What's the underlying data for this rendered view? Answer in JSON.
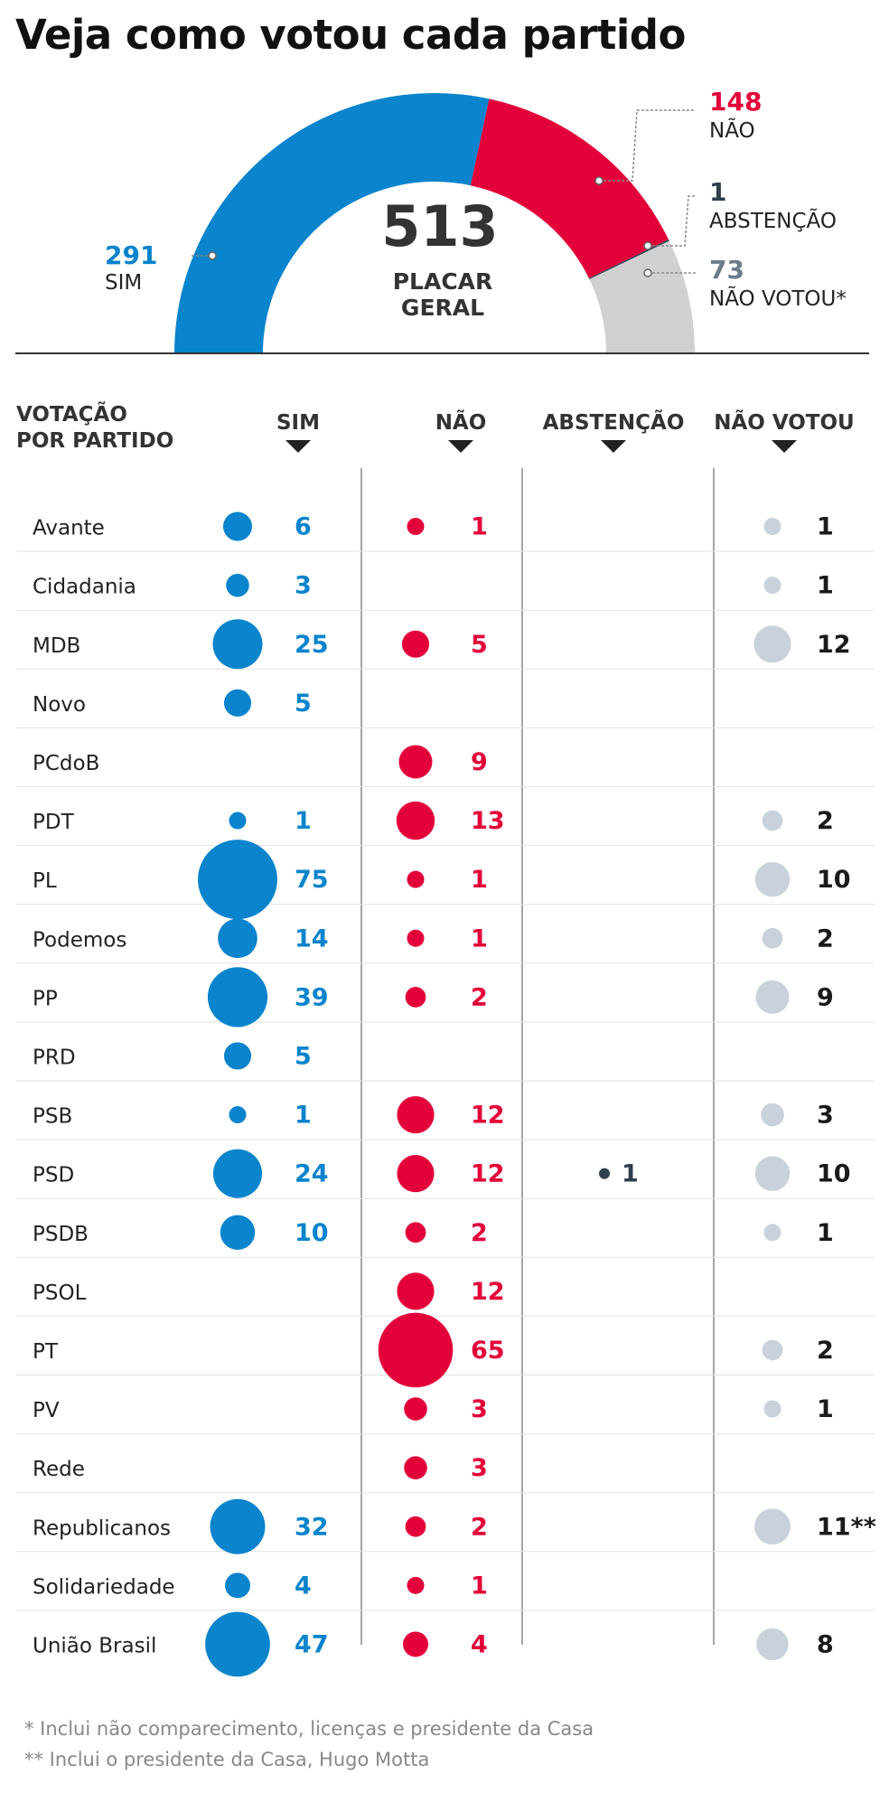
{
  "title": "Veja como votou cada partido",
  "chart_data": [
    {
      "type": "pie",
      "variant": "semicircle",
      "title": "Placar geral",
      "total": 513,
      "total_label": [
        "PLACAR",
        "GERAL"
      ],
      "slices": [
        {
          "key": "sim",
          "label": "SIM",
          "value": 291,
          "color": "#0a84cc"
        },
        {
          "key": "nao",
          "label": "NÃO",
          "value": 148,
          "color": "#e3003a"
        },
        {
          "key": "abst",
          "label": "ABSTENÇÃO",
          "value": 1,
          "color": "#2e3f4d"
        },
        {
          "key": "nv",
          "label": "NÃO VOTOU*",
          "value": 73,
          "color": "#d1d1d1"
        }
      ]
    },
    {
      "type": "table",
      "title": "VOTAÇÃO POR PARTIDO",
      "row_header": [
        "VOTAÇÃO",
        "POR PARTIDO"
      ],
      "columns": [
        "SIM",
        "NÃO",
        "ABSTENÇÃO",
        "NÃO VOTOU"
      ],
      "colors": {
        "sim": "#0a84cc",
        "nao": "#e3003a",
        "abst": "#2e3f4d",
        "nv_bubble": "#c9d2da",
        "nv_text": "#1a1a1a"
      },
      "rows": [
        {
          "party": "Avante",
          "sim": 6,
          "nao": 1,
          "abst": null,
          "nv": 1,
          "nv_label": "1"
        },
        {
          "party": "Cidadania",
          "sim": 3,
          "nao": null,
          "abst": null,
          "nv": 1,
          "nv_label": "1"
        },
        {
          "party": "MDB",
          "sim": 25,
          "nao": 5,
          "abst": null,
          "nv": 12,
          "nv_label": "12"
        },
        {
          "party": "Novo",
          "sim": 5,
          "nao": null,
          "abst": null,
          "nv": null,
          "nv_label": ""
        },
        {
          "party": "PCdoB",
          "sim": null,
          "nao": 9,
          "abst": null,
          "nv": null,
          "nv_label": ""
        },
        {
          "party": "PDT",
          "sim": 1,
          "nao": 13,
          "abst": null,
          "nv": 2,
          "nv_label": "2"
        },
        {
          "party": "PL",
          "sim": 75,
          "nao": 1,
          "abst": null,
          "nv": 10,
          "nv_label": "10"
        },
        {
          "party": "Podemos",
          "sim": 14,
          "nao": 1,
          "abst": null,
          "nv": 2,
          "nv_label": "2"
        },
        {
          "party": "PP",
          "sim": 39,
          "nao": 2,
          "abst": null,
          "nv": 9,
          "nv_label": "9"
        },
        {
          "party": "PRD",
          "sim": 5,
          "nao": null,
          "abst": null,
          "nv": null,
          "nv_label": ""
        },
        {
          "party": "PSB",
          "sim": 1,
          "nao": 12,
          "abst": null,
          "nv": 3,
          "nv_label": "3"
        },
        {
          "party": "PSD",
          "sim": 24,
          "nao": 12,
          "abst": 1,
          "nv": 10,
          "nv_label": "10"
        },
        {
          "party": "PSDB",
          "sim": 10,
          "nao": 2,
          "abst": null,
          "nv": 1,
          "nv_label": "1"
        },
        {
          "party": "PSOL",
          "sim": null,
          "nao": 12,
          "abst": null,
          "nv": null,
          "nv_label": ""
        },
        {
          "party": "PT",
          "sim": null,
          "nao": 65,
          "abst": null,
          "nv": 2,
          "nv_label": "2"
        },
        {
          "party": "PV",
          "sim": null,
          "nao": 3,
          "abst": null,
          "nv": 1,
          "nv_label": "1"
        },
        {
          "party": "Rede",
          "sim": null,
          "nao": 3,
          "abst": null,
          "nv": null,
          "nv_label": ""
        },
        {
          "party": "Republicanos",
          "sim": 32,
          "nao": 2,
          "abst": null,
          "nv": 11,
          "nv_label": "11**"
        },
        {
          "party": "Solidariedade",
          "sim": 4,
          "nao": 1,
          "abst": null,
          "nv": null,
          "nv_label": ""
        },
        {
          "party": "União Brasil",
          "sim": 47,
          "nao": 4,
          "abst": null,
          "nv": 8,
          "nv_label": "8"
        }
      ]
    }
  ],
  "footnotes": [
    "* Inclui não comparecimento, licenças e presidente da Casa",
    "** Inclui o presidente da Casa, Hugo Motta"
  ]
}
